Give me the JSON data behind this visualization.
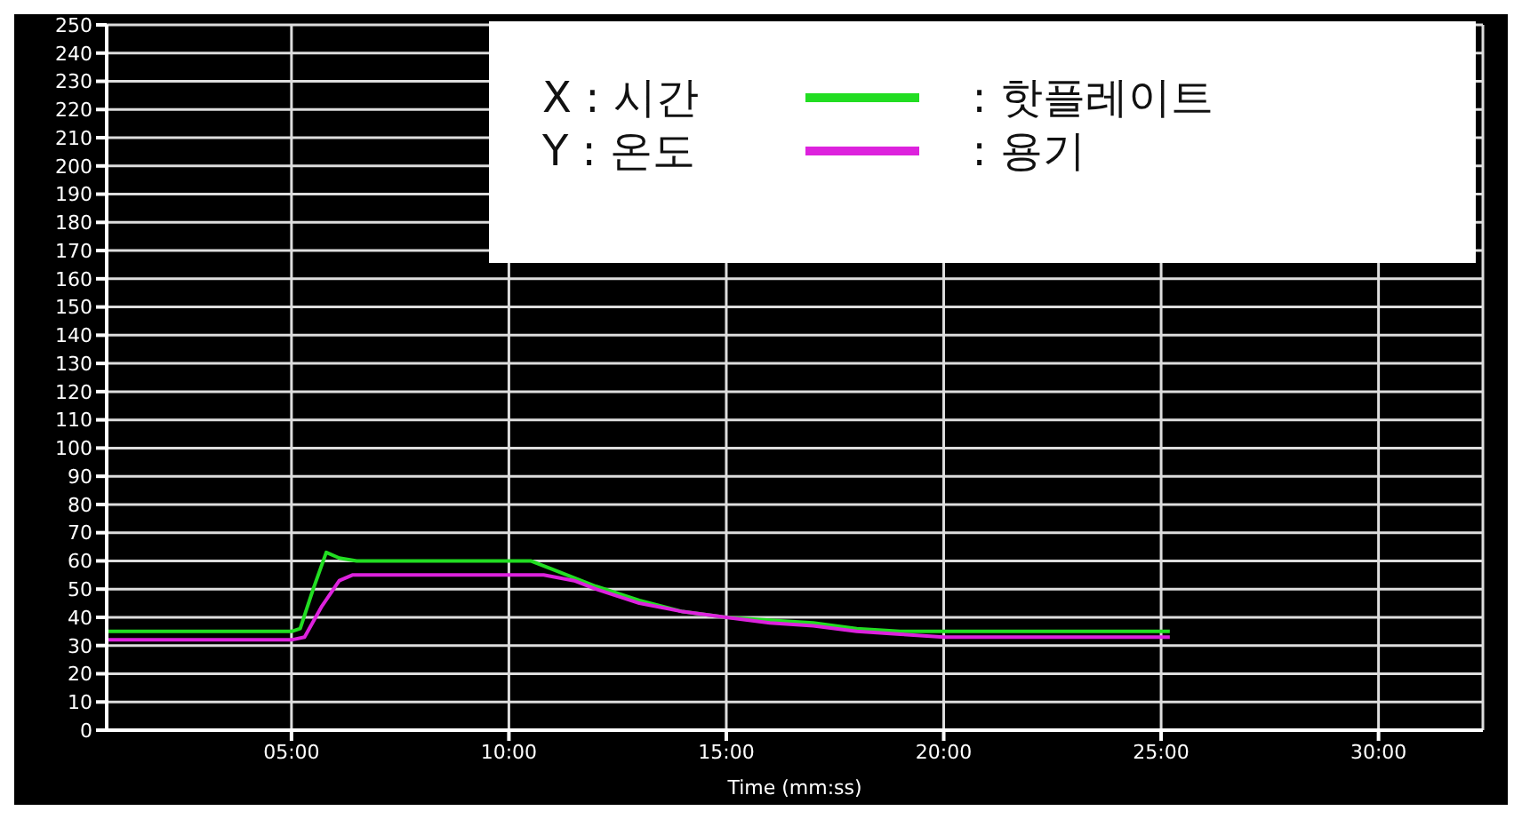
{
  "chart_data": {
    "type": "line",
    "xlabel": "Time (mm:ss)",
    "annotations": [
      "X : 시간",
      "Y : 온도"
    ],
    "xlim": [
      0.75,
      32.4
    ],
    "xticks": [
      {
        "value": 5,
        "label": "05:00"
      },
      {
        "value": 10,
        "label": "10:00"
      },
      {
        "value": 15,
        "label": "15:00"
      },
      {
        "value": 20,
        "label": "20:00"
      },
      {
        "value": 25,
        "label": "25:00"
      },
      {
        "value": 30,
        "label": "30:00"
      }
    ],
    "ylim": [
      0,
      250
    ],
    "yticks": [
      0,
      10,
      20,
      30,
      40,
      50,
      60,
      70,
      80,
      90,
      100,
      110,
      120,
      130,
      140,
      150,
      160,
      170,
      180,
      190,
      200,
      210,
      220,
      230,
      240,
      250
    ],
    "grid": true,
    "legend": "top right",
    "marker": "none",
    "line_style": "solid",
    "series": [
      {
        "name": ": 핫플레이트",
        "color": "#22dd22",
        "x": [
          0.75,
          2,
          3,
          4,
          5,
          5.2,
          5.5,
          5.8,
          6.1,
          6.5,
          7,
          8,
          9,
          10,
          10.5,
          11,
          12,
          13,
          14,
          15,
          16,
          17,
          18,
          19,
          19.5,
          20,
          22,
          24,
          25.2
        ],
        "values": [
          35,
          35,
          35,
          35,
          35,
          36,
          50,
          63,
          61,
          60,
          60,
          60,
          60,
          60,
          60,
          57,
          51,
          46,
          42,
          40,
          39,
          38,
          36,
          35,
          35,
          35,
          35,
          35,
          35
        ]
      },
      {
        "name": ": 용기",
        "color": "#dd22dd",
        "x": [
          0.75,
          2,
          3,
          4,
          5,
          5.3,
          5.7,
          6.1,
          6.4,
          7,
          8,
          9,
          10,
          10.8,
          11.5,
          12,
          13,
          14,
          15,
          16,
          17,
          18,
          19,
          20,
          22,
          24,
          25.2
        ],
        "values": [
          32,
          32,
          32,
          32,
          32,
          33,
          44,
          53,
          55,
          55,
          55,
          55,
          55,
          55,
          53,
          50,
          45,
          42,
          40,
          38,
          37,
          35,
          34,
          33,
          33,
          33,
          33
        ]
      }
    ]
  }
}
